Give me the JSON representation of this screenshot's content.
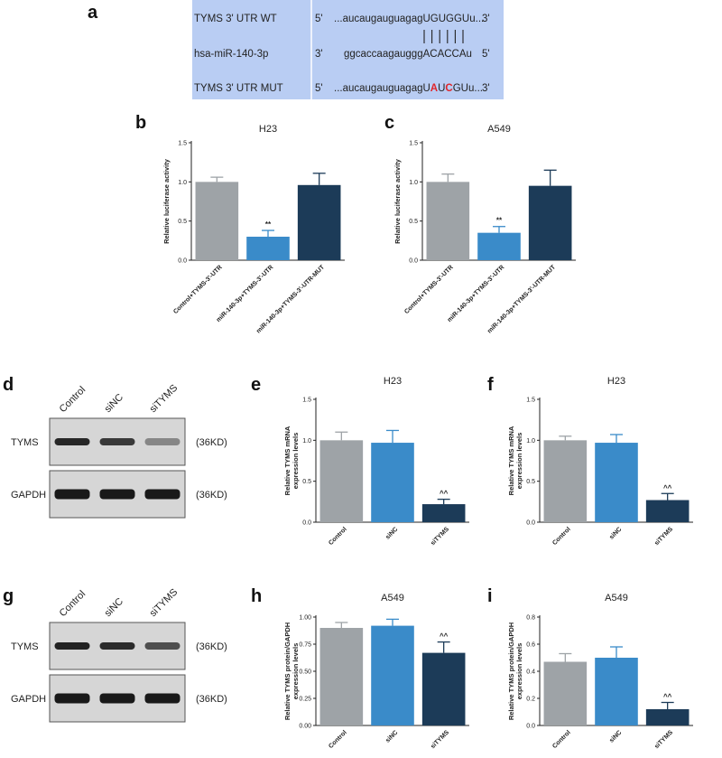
{
  "panel_a": {
    "label": "a",
    "rows": [
      {
        "name": "TYMS 3' UTR WT",
        "end5": "5'",
        "seq": [
          {
            "t": "...aucaugauguagagUGUGGUu...",
            "c": "#222222"
          }
        ],
        "end3": "3'"
      },
      {
        "name": "hsa-miR-140-3p",
        "end5": "3'",
        "seq": [
          {
            "t": "ggcaccaagaugggACACCAu",
            "c": "#222222"
          }
        ],
        "end3": "5'"
      },
      {
        "name": "TYMS 3' UTR MUT",
        "end5": "5'",
        "seq": [
          {
            "t": "...aucaugauguagagU",
            "c": "#222222"
          },
          {
            "t": "A",
            "c": "#e0262b"
          },
          {
            "t": "U",
            "c": "#222222"
          },
          {
            "t": "C",
            "c": "#e0262b"
          },
          {
            "t": "GUu...",
            "c": "#222222"
          }
        ],
        "end3": "3'"
      }
    ],
    "pairing_bars": 6,
    "bg_color": "#b9cdf3"
  },
  "colors": {
    "grey": "#9ea3a7",
    "blue": "#3a8bc9",
    "navy": "#1c3b58"
  },
  "chart_data": [
    {
      "panel": "b",
      "type": "bar",
      "title": "H23",
      "ylabel": "Relative luciferase activity",
      "categories": [
        "Control+TYMS-3'-UTR",
        "miR-140-3p+TYMS-3'-UTR",
        "miR-140-3p+TYMS-3'-UTR-MUT"
      ],
      "values": [
        1.0,
        0.3,
        0.96
      ],
      "errors": [
        0.06,
        0.08,
        0.15
      ],
      "annotations": [
        "",
        "**",
        ""
      ],
      "ylim": [
        0,
        1.5
      ],
      "yticks": [
        "0.0",
        "0.5",
        "1.0",
        "1.5"
      ],
      "rotate_labels": true
    },
    {
      "panel": "c",
      "type": "bar",
      "title": "A549",
      "ylabel": "Relative luciferase activity",
      "categories": [
        "Control+TYMS-3'-UTR",
        "miR-140-3p+TYMS-3'-UTR",
        "miR-140-3p+TYMS-3'-UTR-MUT"
      ],
      "values": [
        1.0,
        0.35,
        0.95
      ],
      "errors": [
        0.1,
        0.08,
        0.2
      ],
      "annotations": [
        "",
        "**",
        ""
      ],
      "ylim": [
        0,
        1.5
      ],
      "yticks": [
        "0.0",
        "0.5",
        "1.0",
        "1.5"
      ],
      "rotate_labels": true
    },
    {
      "panel": "e",
      "type": "bar",
      "title": "H23",
      "ylabel": "Relative TYMS mRNA expression levels",
      "categories": [
        "Control",
        "siNC",
        "siTYMS"
      ],
      "values": [
        1.0,
        0.97,
        0.22
      ],
      "errors": [
        0.1,
        0.15,
        0.06
      ],
      "annotations": [
        "",
        "",
        "^^"
      ],
      "ylim": [
        0,
        1.5
      ],
      "yticks": [
        "0.0",
        "0.5",
        "1.0",
        "1.5"
      ],
      "rotate_labels": true
    },
    {
      "panel": "f",
      "type": "bar",
      "title": "H23",
      "ylabel": "Relative TYMS mRNA expression levels",
      "categories": [
        "Control",
        "siNC",
        "siTYMS"
      ],
      "values": [
        1.0,
        0.97,
        0.27
      ],
      "errors": [
        0.05,
        0.1,
        0.08
      ],
      "annotations": [
        "",
        "",
        "^^"
      ],
      "ylim": [
        0,
        1.5
      ],
      "yticks": [
        "0.0",
        "0.5",
        "1.0",
        "1.5"
      ],
      "rotate_labels": true
    },
    {
      "panel": "h",
      "type": "bar",
      "title": "A549",
      "ylabel": "Relative TYMS protein/GAPDH expression levels",
      "categories": [
        "Control",
        "siNC",
        "siTYMS"
      ],
      "values": [
        0.9,
        0.92,
        0.67
      ],
      "errors": [
        0.05,
        0.06,
        0.1
      ],
      "annotations": [
        "",
        "",
        "^^"
      ],
      "ylim": [
        0,
        1.0
      ],
      "yticks": [
        "0.00",
        "0.25",
        "0.50",
        "0.75",
        "1.00"
      ],
      "rotate_labels": true
    },
    {
      "panel": "i",
      "type": "bar",
      "title": "A549",
      "ylabel": "Relative TYMS protein/GAPDH expression levels",
      "categories": [
        "Control",
        "siNC",
        "siTYMS"
      ],
      "values": [
        0.47,
        0.5,
        0.12
      ],
      "errors": [
        0.06,
        0.08,
        0.05
      ],
      "annotations": [
        "",
        "",
        "^^"
      ],
      "ylim": [
        0,
        0.8
      ],
      "yticks": [
        "0.0",
        "0.2",
        "0.4",
        "0.6",
        "0.8"
      ],
      "rotate_labels": true
    }
  ],
  "western_blots": [
    {
      "panel": "d",
      "lanes": [
        "Control",
        "siNC",
        "siTYMS"
      ],
      "rows": [
        {
          "protein": "TYMS",
          "size": "(36KD)",
          "intensity": [
            0.92,
            0.82,
            0.38
          ]
        },
        {
          "protein": "GAPDH",
          "size": "(36KD)",
          "intensity": [
            1.0,
            1.0,
            1.0
          ]
        }
      ]
    },
    {
      "panel": "g",
      "lanes": [
        "Control",
        "siNC",
        "siTYMS"
      ],
      "rows": [
        {
          "protein": "TYMS",
          "size": "(36KD)",
          "intensity": [
            0.95,
            0.9,
            0.7
          ]
        },
        {
          "protein": "GAPDH",
          "size": "(36KD)",
          "intensity": [
            1.0,
            1.0,
            1.0
          ]
        }
      ]
    }
  ]
}
